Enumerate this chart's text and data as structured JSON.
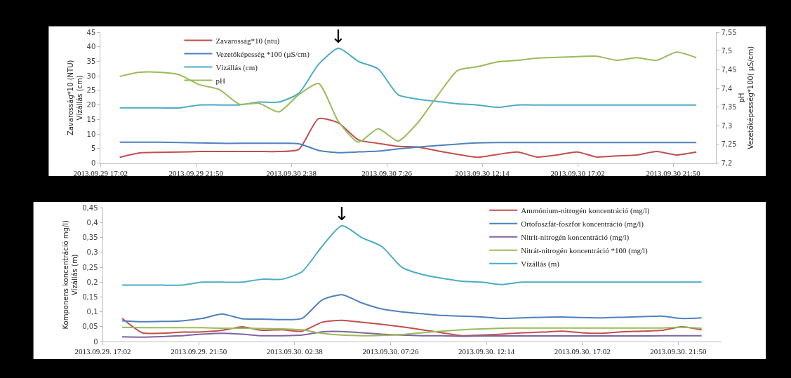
{
  "chart_data": [
    {
      "type": "line",
      "ylabel": "Zavarosság*10 (NTU)\nVízállás (cm)",
      "y2label": "pH\nVezetőképesség*100( µS/cm)",
      "x": [
        "2013-09-29T18:00",
        "2013-09-29T19:00",
        "2013-09-29T20:00",
        "2013-09-29T21:00",
        "2013-09-29T22:00",
        "2013-09-29T23:00",
        "2013-09-30T00:00",
        "2013-09-30T01:00",
        "2013-09-30T02:00",
        "2013-09-30T03:00",
        "2013-09-30T04:00",
        "2013-09-30T05:00",
        "2013-09-30T06:00",
        "2013-09-30T07:00",
        "2013-09-30T08:00",
        "2013-09-30T09:00",
        "2013-09-30T10:00",
        "2013-09-30T11:00",
        "2013-09-30T12:00",
        "2013-09-30T13:00",
        "2013-09-30T14:00",
        "2013-09-30T15:00",
        "2013-09-30T16:00",
        "2013-09-30T17:00",
        "2013-09-30T18:00",
        "2013-09-30T19:00",
        "2013-09-30T20:00",
        "2013-09-30T21:00",
        "2013-09-30T22:00",
        "2013-09-30T23:00"
      ],
      "series": [
        {
          "name": "Zavarosság*10 (ntu)",
          "color": "#c0504d",
          "values": [
            2,
            3.5,
            3.7,
            3.8,
            4,
            4,
            4,
            4,
            4,
            4.7,
            15.3,
            13.8,
            8,
            6.8,
            5.8,
            5.5,
            4.2,
            3,
            2,
            3,
            3.8,
            2.1,
            2.8,
            3.8,
            2.1,
            2.5,
            2.8,
            4,
            2.8,
            3.8
          ]
        },
        {
          "name": "Vezetőképesség *100 (µS/cm)",
          "color": "#4f81bd",
          "axis": "y2",
          "values": [
            7.256,
            7.256,
            7.256,
            7.255,
            7.254,
            7.253,
            7.253,
            7.253,
            7.253,
            7.252,
            7.234,
            7.228,
            7.23,
            7.232,
            7.238,
            7.243,
            7.247,
            7.251,
            7.254,
            7.255,
            7.255,
            7.255,
            7.255,
            7.255,
            7.255,
            7.255,
            7.255,
            7.255,
            7.255,
            7.255
          ]
        },
        {
          "name": "Vízállás (cm)",
          "color": "#4bacc6",
          "values": [
            19,
            19,
            19,
            19,
            20,
            20,
            20,
            21,
            21,
            24,
            34,
            39.5,
            35,
            32.4,
            23.5,
            22,
            21.2,
            20.4,
            20,
            19.2,
            20,
            20,
            20,
            20,
            20,
            20,
            20,
            20,
            20,
            20
          ]
        },
        {
          "name": "pH",
          "color": "#9bbb59",
          "axis": "y2",
          "values": [
            7.432,
            7.443,
            7.443,
            7.436,
            7.41,
            7.397,
            7.358,
            7.36,
            7.337,
            7.383,
            7.413,
            7.311,
            7.256,
            7.292,
            7.259,
            7.309,
            7.382,
            7.448,
            7.458,
            7.471,
            7.475,
            7.481,
            7.483,
            7.485,
            7.486,
            7.475,
            7.482,
            7.475,
            7.497,
            7.482
          ]
        }
      ],
      "xlim": [
        "2013-09-29T17:02",
        "2013-10-01T00:00"
      ],
      "xticks": [
        {
          "value": "2013-09-29T17:02",
          "label": "2013.09.29 17:02"
        },
        {
          "value": "2013-09-29T21:50",
          "label": "2013.09.29 21:50"
        },
        {
          "value": "2013-09-30T02:38",
          "label": "2013.09.30 2:38"
        },
        {
          "value": "2013-09-30T07:26",
          "label": "2013.09.30 7:26"
        },
        {
          "value": "2013-09-30T12:14",
          "label": "2013.09.30 12:14"
        },
        {
          "value": "2013-09-30T17:02",
          "label": "2013.09.30 17:02"
        },
        {
          "value": "2013-09-30T21:50",
          "label": "2013.09.30 21:50"
        }
      ],
      "ylim": [
        0,
        45
      ],
      "yticks": [
        0,
        5,
        10,
        15,
        20,
        25,
        30,
        35,
        40,
        45
      ],
      "y2lim": [
        7.2,
        7.55
      ],
      "y2ticks": [
        {
          "value": 7.2,
          "label": "7,2"
        },
        {
          "value": 7.25,
          "label": "7,25"
        },
        {
          "value": 7.3,
          "label": "7,3"
        },
        {
          "value": 7.35,
          "label": "7,35"
        },
        {
          "value": 7.4,
          "label": "7,4"
        },
        {
          "value": 7.45,
          "label": "7,45"
        },
        {
          "value": 7.5,
          "label": "7,5"
        },
        {
          "value": 7.55,
          "label": "7,55"
        }
      ],
      "annotations": [
        {
          "text": "↓",
          "x": "2013-09-30T05:00",
          "y": 39.5
        }
      ],
      "legend": "top left"
    },
    {
      "type": "line",
      "ylabel": "Komponens koncentráció mg/l)\nVízállás (m)",
      "x": [
        "2013-09-29T18:00",
        "2013-09-29T19:00",
        "2013-09-29T20:00",
        "2013-09-29T21:00",
        "2013-09-29T22:00",
        "2013-09-29T23:00",
        "2013-09-30T00:00",
        "2013-09-30T01:00",
        "2013-09-30T02:00",
        "2013-09-30T03:00",
        "2013-09-30T04:00",
        "2013-09-30T05:00",
        "2013-09-30T06:00",
        "2013-09-30T07:00",
        "2013-09-30T08:00",
        "2013-09-30T09:00",
        "2013-09-30T10:00",
        "2013-09-30T11:00",
        "2013-09-30T12:00",
        "2013-09-30T13:00",
        "2013-09-30T14:00",
        "2013-09-30T15:00",
        "2013-09-30T16:00",
        "2013-09-30T17:00",
        "2013-09-30T18:00",
        "2013-09-30T19:00",
        "2013-09-30T20:00",
        "2013-09-30T21:00",
        "2013-09-30T22:00",
        "2013-09-30T23:00"
      ],
      "series": [
        {
          "name": "Ammónium-nitrogén koncentráció (mg/l)",
          "color": "#c0504d",
          "values": [
            0.078,
            0.03,
            0.028,
            0.032,
            0.033,
            0.038,
            0.05,
            0.038,
            0.04,
            0.035,
            0.065,
            0.072,
            0.065,
            0.058,
            0.05,
            0.04,
            0.03,
            0.02,
            0.022,
            0.025,
            0.03,
            0.032,
            0.035,
            0.03,
            0.028,
            0.033,
            0.035,
            0.038,
            0.05,
            0.04
          ]
        },
        {
          "name": "Ortofoszfát-foszfor koncentráció (mg/l)",
          "color": "#4f81bd",
          "values": [
            0.07,
            0.067,
            0.068,
            0.07,
            0.078,
            0.093,
            0.077,
            0.076,
            0.074,
            0.078,
            0.14,
            0.158,
            0.13,
            0.11,
            0.1,
            0.094,
            0.088,
            0.086,
            0.083,
            0.078,
            0.08,
            0.082,
            0.083,
            0.081,
            0.08,
            0.082,
            0.084,
            0.086,
            0.078,
            0.08
          ]
        },
        {
          "name": "Nitrit-nitrogén koncentráció (mg/l)",
          "color": "#8064a2",
          "values": [
            0.016,
            0.015,
            0.017,
            0.02,
            0.025,
            0.028,
            0.025,
            0.02,
            0.02,
            0.022,
            0.033,
            0.034,
            0.03,
            0.025,
            0.022,
            0.02,
            0.02,
            0.018,
            0.019,
            0.019,
            0.019,
            0.019,
            0.019,
            0.019,
            0.019,
            0.019,
            0.019,
            0.02,
            0.02,
            0.02
          ]
        },
        {
          "name": "Nitrát-nitrogén koncentráció *100 (mg/l)",
          "color": "#9bbb59",
          "values": [
            0.048,
            0.047,
            0.047,
            0.047,
            0.047,
            0.045,
            0.045,
            0.044,
            0.043,
            0.04,
            0.028,
            0.022,
            0.02,
            0.021,
            0.024,
            0.03,
            0.035,
            0.04,
            0.043,
            0.045,
            0.046,
            0.046,
            0.046,
            0.046,
            0.046,
            0.046,
            0.046,
            0.046,
            0.048,
            0.045
          ]
        },
        {
          "name": "Vízállás (m)",
          "color": "#4bacc6",
          "values": [
            0.19,
            0.19,
            0.19,
            0.19,
            0.2,
            0.2,
            0.2,
            0.21,
            0.21,
            0.235,
            0.32,
            0.39,
            0.35,
            0.32,
            0.25,
            0.226,
            0.213,
            0.203,
            0.2,
            0.192,
            0.2,
            0.2,
            0.2,
            0.2,
            0.2,
            0.2,
            0.2,
            0.2,
            0.2,
            0.2
          ]
        }
      ],
      "xlim": [
        "2013-09-29T17:02",
        "2013-10-01T00:00"
      ],
      "xticks": [
        {
          "value": "2013-09-29T17:02",
          "label": "2013.09.29. 17:02"
        },
        {
          "value": "2013-09-29T21:50",
          "label": "2013.09.29. 21:50"
        },
        {
          "value": "2013-09-30T02:38",
          "label": "2013.09.30. 02:38"
        },
        {
          "value": "2013-09-30T07:26",
          "label": "2013.09.30. 07:26"
        },
        {
          "value": "2013-09-30T12:14",
          "label": "2013.09.30. 12:14"
        },
        {
          "value": "2013-09-30T17:02",
          "label": "2013.09.30. 17:02"
        },
        {
          "value": "2013-09-30T21:50",
          "label": "2013.09.30. 21:50"
        }
      ],
      "ylim": [
        0,
        0.45
      ],
      "yticks": [
        {
          "value": 0,
          "label": "0"
        },
        {
          "value": 0.05,
          "label": "0,05"
        },
        {
          "value": 0.1,
          "label": "0,1"
        },
        {
          "value": 0.15,
          "label": "0,15"
        },
        {
          "value": 0.2,
          "label": "0,2"
        },
        {
          "value": 0.25,
          "label": "0,25"
        },
        {
          "value": 0.3,
          "label": "0,3"
        },
        {
          "value": 0.35,
          "label": "0,35"
        },
        {
          "value": 0.4,
          "label": "0,4"
        },
        {
          "value": 0.45,
          "label": "0,45"
        }
      ],
      "annotations": [
        {
          "text": "↓",
          "x": "2013-09-30T05:00",
          "y": 0.39
        }
      ],
      "legend": "top right"
    }
  ]
}
